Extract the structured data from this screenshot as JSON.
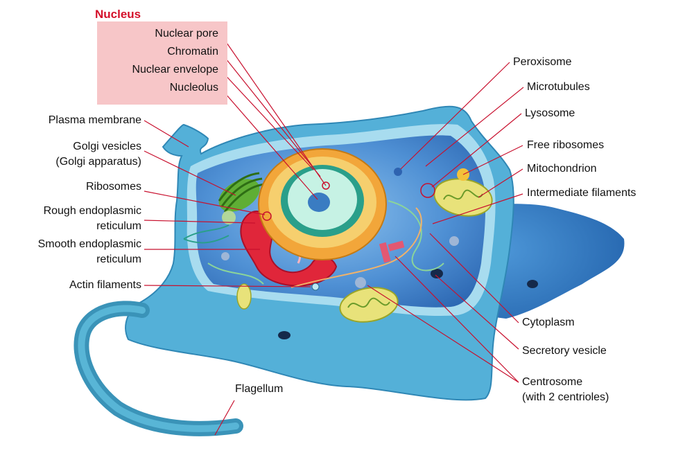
{
  "nucleus": {
    "title": "Nucleus",
    "items": [
      "Nuclear pore",
      "Chromatin",
      "Nuclear envelope",
      "Nucleolus"
    ]
  },
  "left_labels": {
    "plasma_membrane": "Plasma membrane",
    "golgi_vesicles": "Golgi vesicles",
    "golgi_apparatus": "(Golgi apparatus)",
    "ribosomes": "Ribosomes",
    "rough_er_1": "Rough endoplasmic",
    "rough_er_2": "reticulum",
    "smooth_er_1": "Smooth endoplasmic",
    "smooth_er_2": "reticulum",
    "actin_filaments": "Actin filaments",
    "flagellum": "Flagellum"
  },
  "right_labels": {
    "peroxisome": "Peroxisome",
    "microtubules": "Microtubules",
    "lysosome": "Lysosome",
    "free_ribosomes": "Free ribosomes",
    "mitochondrion": "Mitochondrion",
    "intermediate_filaments": "Intermediate filaments",
    "cytoplasm": "Cytoplasm",
    "secretory_vesicle": "Secretory vesicle",
    "centrosome_1": "Centrosome",
    "centrosome_2": "(with 2 centrioles)"
  },
  "colors": {
    "leader_line": "#c8102e",
    "membrane_outer": "#4aa7cf",
    "membrane_light": "#8fd0e8",
    "cytoplasm": "#3f86cc",
    "nucleus_envelope": "#f0a73a",
    "nucleoplasm": "#bff0e0",
    "nucleolus": "#3a7cc2",
    "rough_er": "#e0263a",
    "golgi": "#4f9a2a",
    "mitochondrion": "#e8e27a"
  }
}
